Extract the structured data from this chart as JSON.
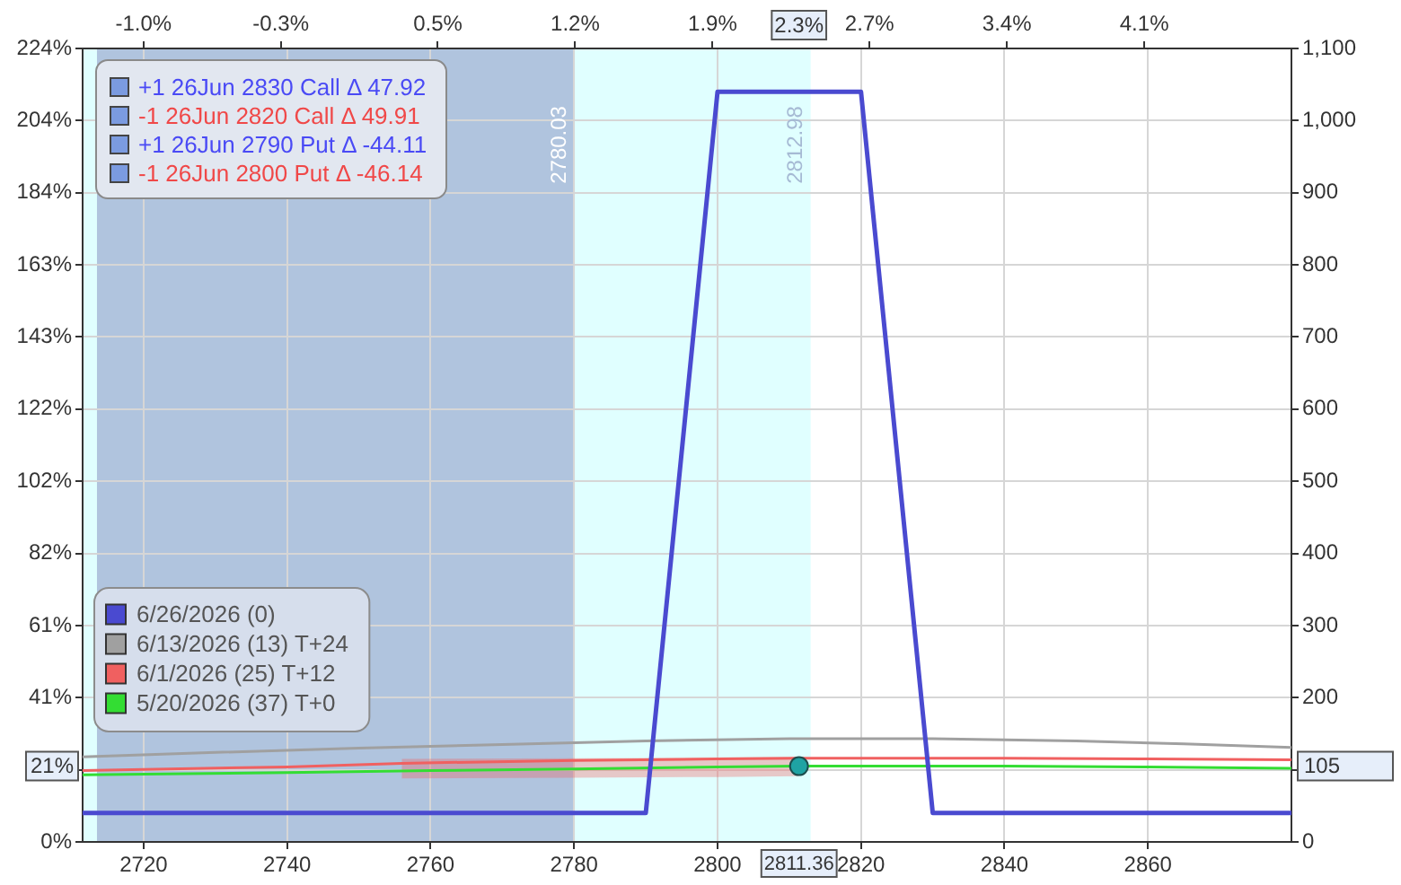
{
  "chart_data": {
    "type": "line",
    "xlim": [
      2711.5,
      2880
    ],
    "xticks": [
      2720,
      2740,
      2760,
      2780,
      2800,
      2820,
      2840,
      2860
    ],
    "x2lim": [
      -1.31,
      4.85
    ],
    "x2ticks": [
      {
        "value": -1.0,
        "label": "-1.0%"
      },
      {
        "value": -0.3,
        "label": "-0.3%"
      },
      {
        "value": 0.5,
        "label": "0.5%"
      },
      {
        "value": 1.2,
        "label": "1.2%"
      },
      {
        "value": 1.9,
        "label": "1.9%"
      },
      {
        "value": 2.7,
        "label": "2.7%"
      },
      {
        "value": 3.4,
        "label": "3.4%"
      },
      {
        "value": 4.1,
        "label": "4.1%"
      }
    ],
    "ylim": [
      0,
      224.4
    ],
    "yticks": [
      {
        "value": 0,
        "label": "0%"
      },
      {
        "value": 20.4,
        "label": null
      },
      {
        "value": 40.8,
        "label": "41%"
      },
      {
        "value": 61.2,
        "label": "61%"
      },
      {
        "value": 81.6,
        "label": "82%"
      },
      {
        "value": 102,
        "label": "102%"
      },
      {
        "value": 122.4,
        "label": "122%"
      },
      {
        "value": 142.8,
        "label": "143%"
      },
      {
        "value": 163.2,
        "label": "163%"
      },
      {
        "value": 183.6,
        "label": "184%"
      },
      {
        "value": 204,
        "label": "204%"
      },
      {
        "value": 224.4,
        "label": "224%"
      }
    ],
    "y2lim": [
      0,
      1100
    ],
    "y2ticks": [
      0,
      {
        "value": 100,
        "label": null
      },
      200,
      300,
      400,
      500,
      600,
      700,
      800,
      900,
      {
        "value": 1000,
        "label": "1,000"
      },
      {
        "value": 1100,
        "label": "1,100"
      }
    ],
    "grid": true,
    "legend": "bottom left",
    "series": [
      {
        "name": "6/26/2026 (0)",
        "color": "#4a4ad0",
        "axis": "y2",
        "x": [
          2711.5,
          2790,
          2800,
          2820,
          2830,
          2880
        ],
        "values": [
          40,
          40,
          1040,
          1040,
          40,
          40
        ]
      },
      {
        "name": "6/13/2026 (13) T+24",
        "color": "#a0a0a0",
        "axis": "y2",
        "x": [
          2711.5,
          2730,
          2750,
          2770,
          2790,
          2810,
          2830,
          2850,
          2865,
          2880
        ],
        "values": [
          118,
          124,
          130,
          135,
          140,
          143,
          143,
          140,
          136,
          131
        ]
      },
      {
        "name": "6/1/2026 (25) T+12",
        "color": "#f06060",
        "axis": "y2",
        "x": [
          2711.5,
          2740,
          2756,
          2780,
          2800,
          2811.36,
          2840,
          2860,
          2880
        ],
        "values": [
          99,
          104,
          109,
          113,
          115,
          116,
          116,
          115,
          114
        ],
        "lower": [
          null,
          null,
          88,
          89,
          90,
          91,
          null,
          null,
          null
        ],
        "upper": [
          null,
          null,
          115,
          116,
          117,
          118,
          null,
          null,
          null
        ]
      },
      {
        "name": "5/20/2026 (37) T+0",
        "color": "#33dd33",
        "axis": "y2",
        "x": [
          2711.5,
          2740,
          2760,
          2780,
          2800,
          2811.36,
          2840,
          2860,
          2880
        ],
        "values": [
          93,
          96,
          99,
          101,
          104,
          105,
          105,
          104,
          102
        ]
      },
      {
        "type": "scatter",
        "color": "#1fa3a3",
        "axis": "y2",
        "marker": "circle",
        "x": [
          2811.36
        ],
        "values": [
          105
        ]
      }
    ],
    "bands": [
      {
        "axis": "x",
        "from": 2711.5,
        "to": 2812.98,
        "label": "2812.98",
        "color": "#e0ffff"
      },
      {
        "axis": "x",
        "from": 2713.5,
        "to": 2780.03,
        "label": "2780.03",
        "color": "#b0c4de"
      }
    ],
    "annotations": [
      "+1 26Jun 2830 Call Δ 47.92",
      "-1 26Jun 2820 Call Δ 49.91",
      "+1 26Jun 2790 Put Δ -44.11",
      "-1 26Jun 2800 Put Δ -46.14",
      "2811.36",
      "2.3%",
      "21%",
      "105"
    ]
  }
}
